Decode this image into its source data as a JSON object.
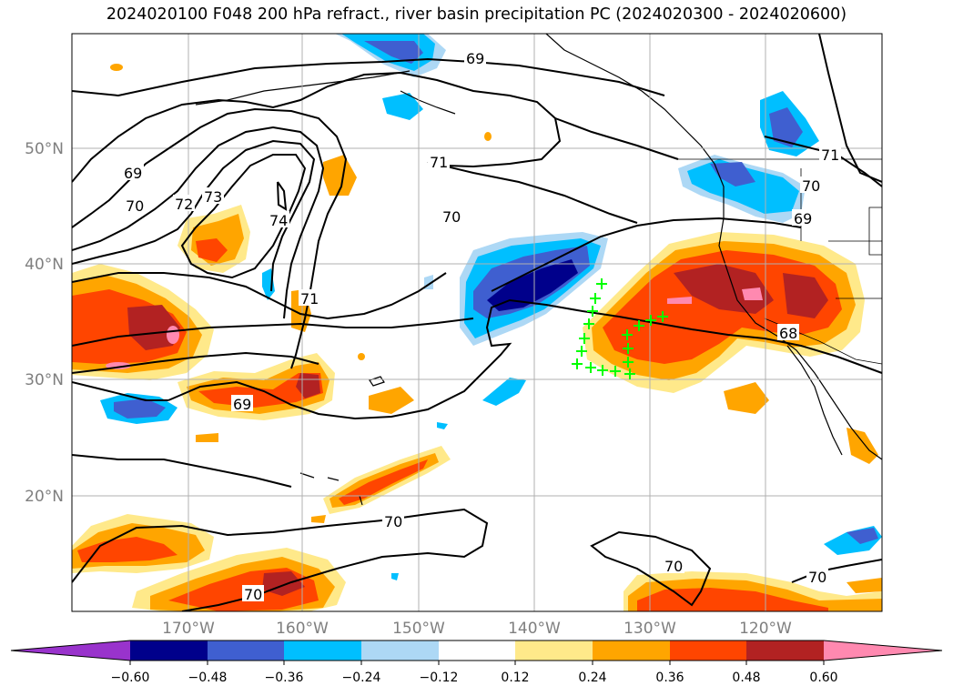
{
  "title": "2024020100 F048 200 hPa refract., river basin precipitation PC (2024020300 - 2024020600)",
  "map": {
    "lat_labels": [
      "50°N",
      "40°N",
      "30°N",
      "20°N"
    ],
    "lon_labels": [
      "170°W",
      "160°W",
      "150°W",
      "140°W",
      "130°W",
      "120°W"
    ],
    "contour_labels": [
      "69",
      "70",
      "71",
      "72",
      "73",
      "74",
      "68"
    ],
    "colors": {
      "c_neg60": "#9933cc",
      "c_neg48": "#00008b",
      "c_neg36": "#3f5fd0",
      "c_neg24": "#00bfff",
      "c_neg12": "#add8f5",
      "c_zero": "#ffffff",
      "c_pos12": "#ffe98a",
      "c_pos24": "#ffa500",
      "c_pos36": "#ff4500",
      "c_pos48": "#b22222",
      "c_pos60": "#ff89b0",
      "marker": "#00ff00",
      "contour": "#000000",
      "grid": "#b0b0b0"
    }
  },
  "colorbar": {
    "tick_labels": [
      "−0.60",
      "−0.48",
      "−0.36",
      "−0.24",
      "−0.12",
      "0.12",
      "0.24",
      "0.36",
      "0.48",
      "0.60"
    ]
  }
}
